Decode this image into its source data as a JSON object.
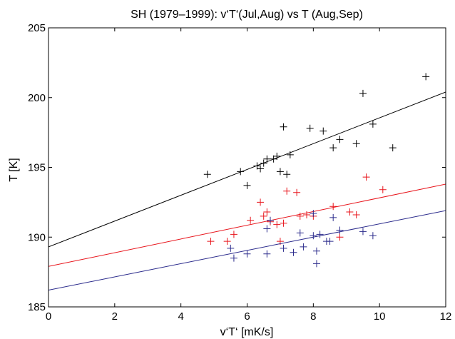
{
  "chart_data": {
    "type": "scatter",
    "title": "SH (1979–1999): v‘T‘(Jul,Aug) vs T (Aug,Sep)",
    "xlabel": "v‘T‘ [mK/s]",
    "ylabel": "T [K]",
    "xlim": [
      0,
      12
    ],
    "ylim": [
      185,
      205
    ],
    "xticks": [
      0,
      2,
      4,
      6,
      8,
      10,
      12
    ],
    "yticks": [
      185,
      190,
      195,
      200,
      205
    ],
    "grid": false,
    "legend": "none",
    "series": [
      {
        "color": "#000000",
        "fit": {
          "x": [
            0,
            12
          ],
          "y": [
            189.3,
            200.4
          ]
        },
        "points": [
          [
            4.8,
            194.5
          ],
          [
            5.8,
            194.7
          ],
          [
            6.0,
            193.7
          ],
          [
            6.3,
            195.1
          ],
          [
            6.4,
            194.9
          ],
          [
            6.5,
            195.3
          ],
          [
            6.6,
            195.6
          ],
          [
            6.8,
            195.6
          ],
          [
            6.9,
            195.8
          ],
          [
            7.0,
            194.7
          ],
          [
            7.1,
            197.9
          ],
          [
            7.2,
            194.5
          ],
          [
            7.3,
            195.9
          ],
          [
            7.9,
            197.8
          ],
          [
            8.3,
            197.6
          ],
          [
            8.6,
            196.4
          ],
          [
            8.8,
            197.0
          ],
          [
            9.3,
            196.7
          ],
          [
            9.5,
            200.3
          ],
          [
            9.8,
            198.1
          ],
          [
            10.4,
            196.4
          ],
          [
            11.4,
            201.5
          ]
        ]
      },
      {
        "color": "#e8141b",
        "fit": {
          "x": [
            0,
            12
          ],
          "y": [
            187.9,
            193.8
          ]
        },
        "points": [
          [
            4.9,
            189.7
          ],
          [
            5.4,
            189.7
          ],
          [
            5.6,
            190.2
          ],
          [
            6.1,
            191.2
          ],
          [
            6.4,
            192.5
          ],
          [
            6.5,
            191.5
          ],
          [
            6.6,
            191.8
          ],
          [
            6.7,
            191.1
          ],
          [
            6.9,
            190.9
          ],
          [
            7.0,
            189.7
          ],
          [
            7.1,
            191.0
          ],
          [
            7.2,
            193.3
          ],
          [
            7.5,
            193.2
          ],
          [
            7.6,
            191.5
          ],
          [
            7.8,
            191.6
          ],
          [
            8.0,
            191.5
          ],
          [
            8.6,
            192.2
          ],
          [
            8.8,
            190.0
          ],
          [
            9.1,
            191.8
          ],
          [
            9.3,
            191.6
          ],
          [
            9.6,
            194.3
          ],
          [
            10.1,
            193.4
          ]
        ]
      },
      {
        "color": "#2b2b8c",
        "fit": {
          "x": [
            0,
            12
          ],
          "y": [
            186.2,
            191.9
          ]
        },
        "points": [
          [
            5.5,
            189.2
          ],
          [
            5.6,
            188.5
          ],
          [
            6.0,
            188.8
          ],
          [
            6.6,
            188.8
          ],
          [
            6.6,
            190.6
          ],
          [
            6.7,
            191.2
          ],
          [
            7.1,
            189.2
          ],
          [
            7.4,
            188.9
          ],
          [
            7.6,
            190.3
          ],
          [
            7.7,
            189.3
          ],
          [
            8.0,
            191.7
          ],
          [
            8.0,
            190.1
          ],
          [
            8.1,
            189.0
          ],
          [
            8.1,
            188.1
          ],
          [
            8.2,
            190.2
          ],
          [
            8.4,
            189.7
          ],
          [
            8.5,
            189.7
          ],
          [
            8.6,
            191.4
          ],
          [
            8.8,
            190.5
          ],
          [
            9.5,
            190.4
          ],
          [
            9.8,
            190.1
          ]
        ]
      }
    ]
  }
}
